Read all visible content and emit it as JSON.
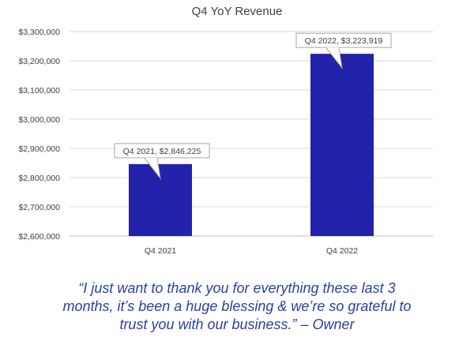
{
  "chart_data": {
    "type": "bar",
    "title": "Q4 YoY Revenue",
    "xlabel": "",
    "ylabel": "",
    "categories": [
      "Q4 2021",
      "Q4 2022"
    ],
    "values": [
      2846225,
      3223919
    ],
    "data_labels": [
      "Q4 2021, $2,846,225",
      "Q4 2022, $3,223,919"
    ],
    "ylim": [
      2600000,
      3300000
    ],
    "y_ticks": [
      2600000,
      2700000,
      2800000,
      2900000,
      3000000,
      3100000,
      3200000,
      3300000
    ],
    "y_tick_labels": [
      "$2,600,000",
      "$2,700,000",
      "$2,800,000",
      "$2,900,000",
      "$3,000,000",
      "$3,100,000",
      "$3,200,000",
      "$3,300,000"
    ],
    "grid": true,
    "legend": "none",
    "bar_color": "#2222aa"
  },
  "quote": {
    "lines": [
      "“I just want to thank you for everything these last 3",
      "months, it’s been a huge blessing & we’re so grateful to",
      "trust you with our business.” – Owner"
    ],
    "color": "#2c3fa3"
  }
}
